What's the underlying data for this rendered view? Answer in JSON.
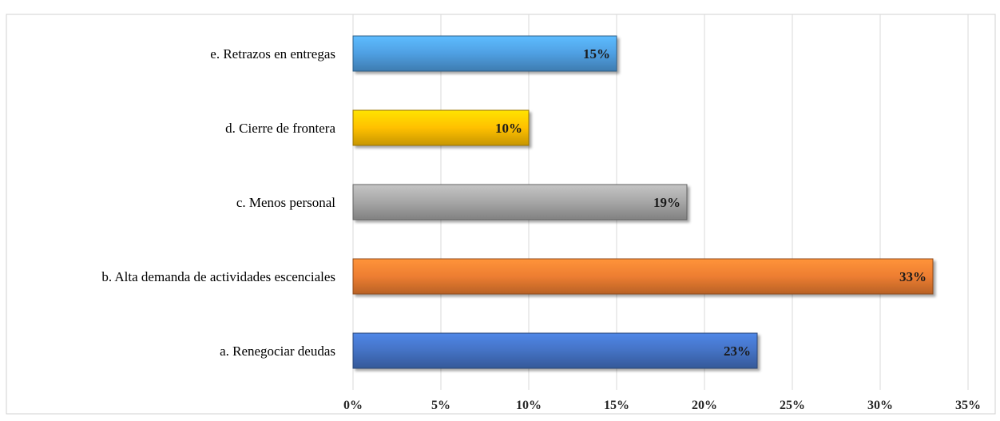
{
  "title": "",
  "chart_data": {
    "type": "bar",
    "orientation": "horizontal",
    "categories": [
      "e. Retrazos en entregas",
      "d. Cierre de frontera",
      "c. Menos personal",
      "b. Alta demanda de actividades escenciales",
      "a. Renegociar deudas"
    ],
    "values": [
      15,
      10,
      19,
      33,
      23
    ],
    "data_labels": [
      "15%",
      "10%",
      "19%",
      "33%",
      "23%"
    ],
    "colors": [
      "#4f9fe2",
      "#ffc000",
      "#a6a6a6",
      "#ed7d31",
      "#4472c4"
    ],
    "xlim": [
      0,
      35
    ],
    "x_ticks": [
      "0%",
      "5%",
      "10%",
      "15%",
      "20%",
      "25%",
      "30%",
      "35%"
    ],
    "x_tick_values": [
      0,
      5,
      10,
      15,
      20,
      25,
      30,
      35
    ],
    "grid": "vertical",
    "legend": "none",
    "xlabel": "",
    "ylabel": ""
  }
}
